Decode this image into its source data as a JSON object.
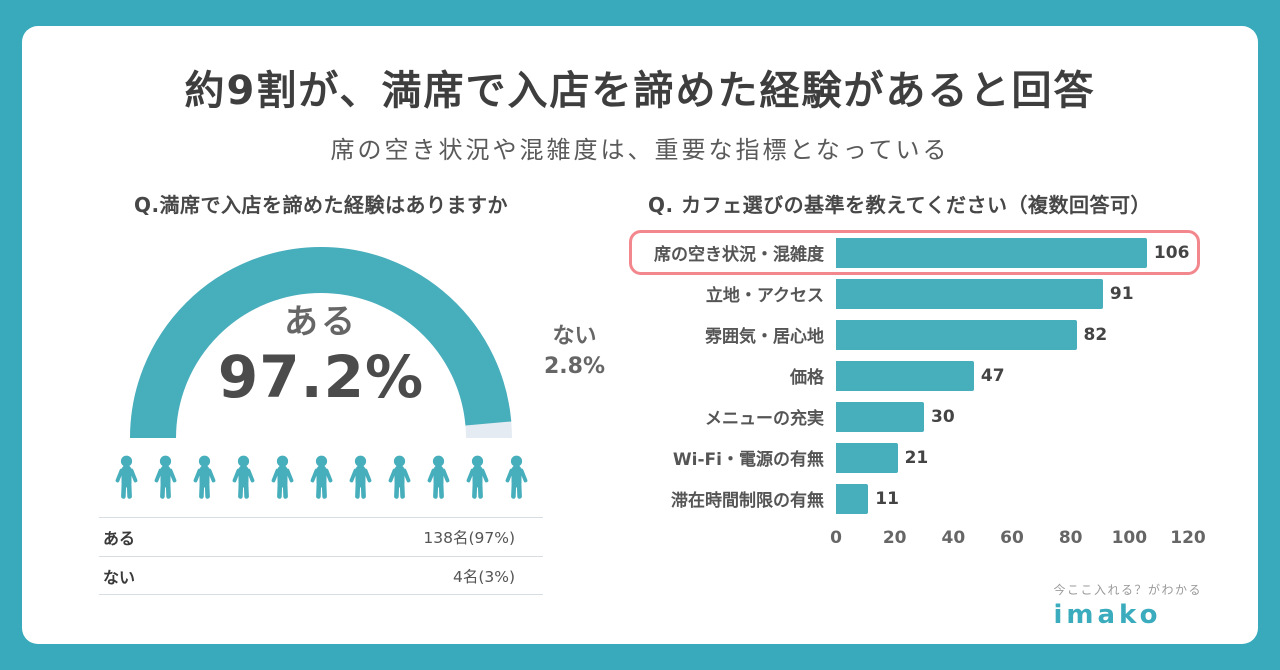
{
  "canvas": {
    "bg_color": "#39aabb",
    "card_color": "#ffffff",
    "accent_color": "#47aebc"
  },
  "header": {
    "title": "約9割が、満席で入店を諦めた経験があると回答",
    "subtitle": "席の空き状況や混雑度は、重要な指標となっている"
  },
  "chart_data": [
    {
      "type": "pie",
      "variant": "half-donut",
      "title": "Q.満席で入店を諦めた経験はありますか",
      "slices": [
        {
          "label": "ある",
          "value": 97.2,
          "value_text": "97.2%",
          "color": "#47aebc"
        },
        {
          "label": "ない",
          "value": 2.8,
          "value_text": "2.8%",
          "color": "#e5ebf2"
        }
      ],
      "center_label": "ある",
      "center_value_text": "97.2%"
    },
    {
      "type": "bar",
      "orientation": "horizontal",
      "title": "Q. カフェ選びの基準を教えてください（複数回答可）",
      "categories": [
        "席の空き状況・混雑度",
        "立地・アクセス",
        "雰囲気・居心地",
        "価格",
        "メニューの充実",
        "Wi-Fi・電源の有無",
        "滞在時間制限の有無"
      ],
      "values": [
        106,
        91,
        82,
        47,
        30,
        21,
        11
      ],
      "xlim": [
        0,
        120
      ],
      "x_ticks": [
        0,
        20,
        40,
        60,
        80,
        100,
        120
      ],
      "bar_color": "#47aebc",
      "highlight": {
        "index": 0,
        "color": "#f2878d"
      }
    }
  ],
  "left_panel": {
    "people_icon_count": 11,
    "people_icon_color": "#47aebc",
    "table_rows": [
      {
        "label": "ある",
        "value": "138名(97%)"
      },
      {
        "label": "ない",
        "value": "4名(3%)"
      }
    ]
  },
  "footer": {
    "tagline": "今ここ入れる？がわかる",
    "brand": "imako",
    "brand_color": "#3aacbd"
  }
}
